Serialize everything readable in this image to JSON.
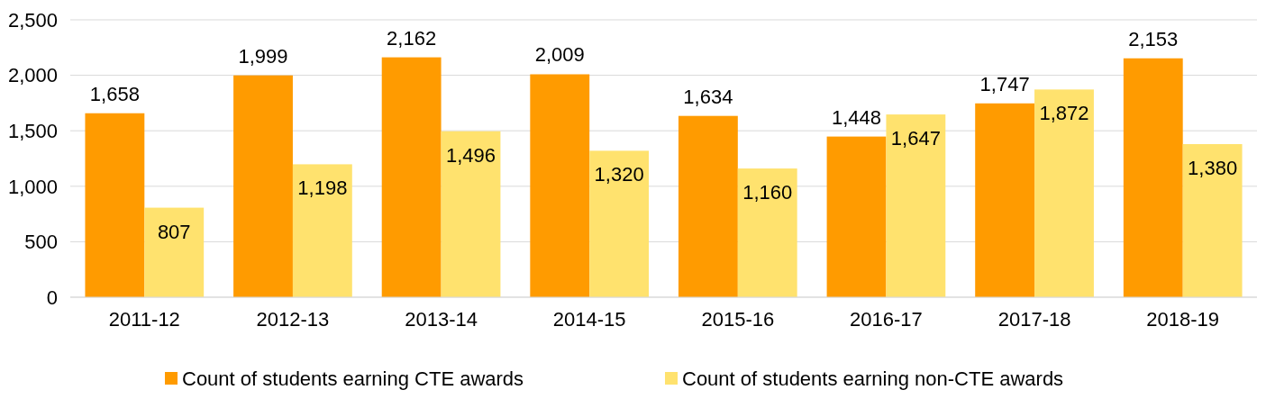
{
  "chart_data": {
    "type": "bar",
    "categories": [
      "2011-12",
      "2012-13",
      "2013-14",
      "2014-15",
      "2015-16",
      "2016-17",
      "2017-18",
      "2018-19"
    ],
    "series": [
      {
        "name": "Count of students earning CTE awards",
        "color": "#ff9b00",
        "values": [
          1658,
          1999,
          2162,
          2009,
          1634,
          1448,
          1747,
          2153
        ],
        "value_labels": [
          "1,658",
          "1,999",
          "2,162",
          "2,009",
          "1,634",
          "1,448",
          "1,747",
          "2,153"
        ]
      },
      {
        "name": "Count of students earning non-CTE awards",
        "color": "#ffe26e",
        "values": [
          807,
          1198,
          1496,
          1320,
          1160,
          1647,
          1872,
          1380
        ],
        "value_labels": [
          "807",
          "1,198",
          "1,496",
          "1,320",
          "1,160",
          "1,647",
          "1,872",
          "1,380"
        ]
      }
    ],
    "ylim": [
      0,
      2500
    ],
    "yticks": [
      0,
      {
        "value": 500,
        "label": "500"
      },
      {
        "value": 1000,
        "label": "1,000"
      },
      {
        "value": 1500,
        "label": "1,500"
      },
      {
        "value": 2000,
        "label": "2,000"
      },
      {
        "value": 2500,
        "label": "2,500"
      }
    ],
    "grid": "y",
    "legend": "bottom"
  }
}
